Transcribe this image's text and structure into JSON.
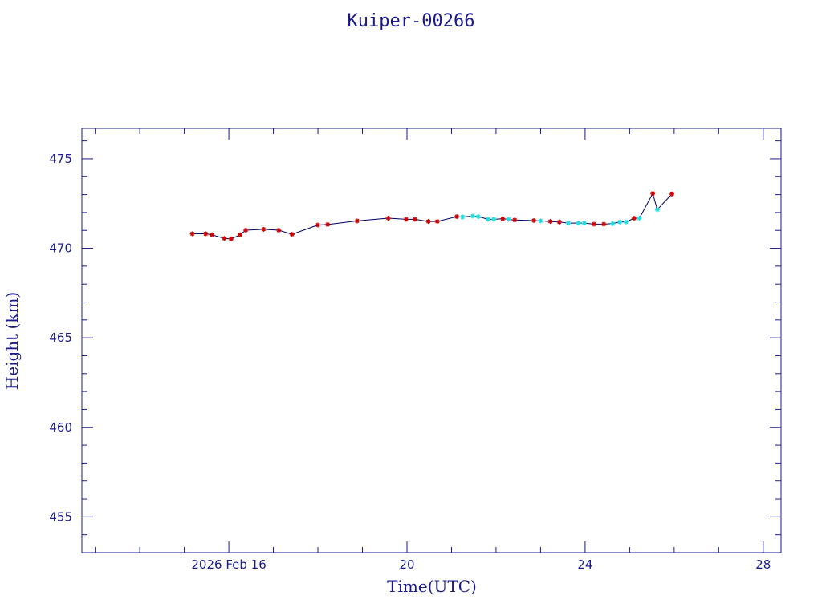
{
  "chart_data": {
    "type": "line",
    "title": "Kuiper-00266",
    "xlabel": "Time(UTC)",
    "ylabel": "Height (km)",
    "x_unit": "days (Feb 2026)",
    "xlim": [
      12.7,
      28.4
    ],
    "ylim": [
      453.0,
      476.7
    ],
    "grid": false,
    "x_ticks": [
      {
        "value": 16,
        "label": "2026 Feb 16"
      },
      {
        "value": 20,
        "label": "20"
      },
      {
        "value": 24,
        "label": "24"
      },
      {
        "value": 28,
        "label": "28"
      }
    ],
    "y_ticks": [
      455,
      460,
      465,
      470,
      475
    ],
    "colors": {
      "axes": "#1a1a8c",
      "line": "#000066",
      "marker_red": "#cc0000",
      "marker_cyan": "#22dddd"
    },
    "series": [
      {
        "values": [
          {
            "x": 15.18,
            "y": 470.81,
            "c": "red"
          },
          {
            "x": 15.48,
            "y": 470.81,
            "c": "red"
          },
          {
            "x": 15.62,
            "y": 470.75,
            "c": "red"
          },
          {
            "x": 15.9,
            "y": 470.55,
            "c": "red"
          },
          {
            "x": 16.05,
            "y": 470.52,
            "c": "red"
          },
          {
            "x": 16.25,
            "y": 470.75,
            "c": "red"
          },
          {
            "x": 16.38,
            "y": 471.01,
            "c": "red"
          },
          {
            "x": 16.78,
            "y": 471.06,
            "c": "red"
          },
          {
            "x": 17.12,
            "y": 471.01,
            "c": "red"
          },
          {
            "x": 17.42,
            "y": 470.78,
            "c": "red"
          },
          {
            "x": 18.0,
            "y": 471.3,
            "c": "red"
          },
          {
            "x": 18.22,
            "y": 471.33,
            "c": "red"
          },
          {
            "x": 18.88,
            "y": 471.53,
            "c": "red"
          },
          {
            "x": 19.58,
            "y": 471.68,
            "c": "red"
          },
          {
            "x": 19.98,
            "y": 471.62,
            "c": "red"
          },
          {
            "x": 20.18,
            "y": 471.62,
            "c": "red"
          },
          {
            "x": 20.48,
            "y": 471.5,
            "c": "red"
          },
          {
            "x": 20.68,
            "y": 471.5,
            "c": "red"
          },
          {
            "x": 21.12,
            "y": 471.77,
            "c": "red"
          },
          {
            "x": 21.25,
            "y": 471.75,
            "c": "cyan"
          },
          {
            "x": 21.48,
            "y": 471.8,
            "c": "cyan"
          },
          {
            "x": 21.6,
            "y": 471.77,
            "c": "cyan"
          },
          {
            "x": 21.82,
            "y": 471.62,
            "c": "cyan"
          },
          {
            "x": 21.95,
            "y": 471.62,
            "c": "cyan"
          },
          {
            "x": 22.15,
            "y": 471.65,
            "c": "red"
          },
          {
            "x": 22.28,
            "y": 471.62,
            "c": "cyan"
          },
          {
            "x": 22.42,
            "y": 471.58,
            "c": "red"
          },
          {
            "x": 22.85,
            "y": 471.55,
            "c": "red"
          },
          {
            "x": 23.0,
            "y": 471.53,
            "c": "cyan"
          },
          {
            "x": 23.22,
            "y": 471.5,
            "c": "red"
          },
          {
            "x": 23.42,
            "y": 471.47,
            "c": "red"
          },
          {
            "x": 23.62,
            "y": 471.41,
            "c": "cyan"
          },
          {
            "x": 23.85,
            "y": 471.41,
            "c": "cyan"
          },
          {
            "x": 23.98,
            "y": 471.41,
            "c": "cyan"
          },
          {
            "x": 24.2,
            "y": 471.35,
            "c": "red"
          },
          {
            "x": 24.42,
            "y": 471.35,
            "c": "red"
          },
          {
            "x": 24.62,
            "y": 471.38,
            "c": "cyan"
          },
          {
            "x": 24.78,
            "y": 471.47,
            "c": "cyan"
          },
          {
            "x": 24.92,
            "y": 471.47,
            "c": "cyan"
          },
          {
            "x": 25.1,
            "y": 471.68,
            "c": "red"
          },
          {
            "x": 25.22,
            "y": 471.68,
            "c": "cyan"
          },
          {
            "x": 25.52,
            "y": 473.06,
            "c": "red"
          },
          {
            "x": 25.62,
            "y": 472.16,
            "c": "cyan"
          },
          {
            "x": 25.95,
            "y": 473.03,
            "c": "red"
          }
        ]
      }
    ]
  }
}
